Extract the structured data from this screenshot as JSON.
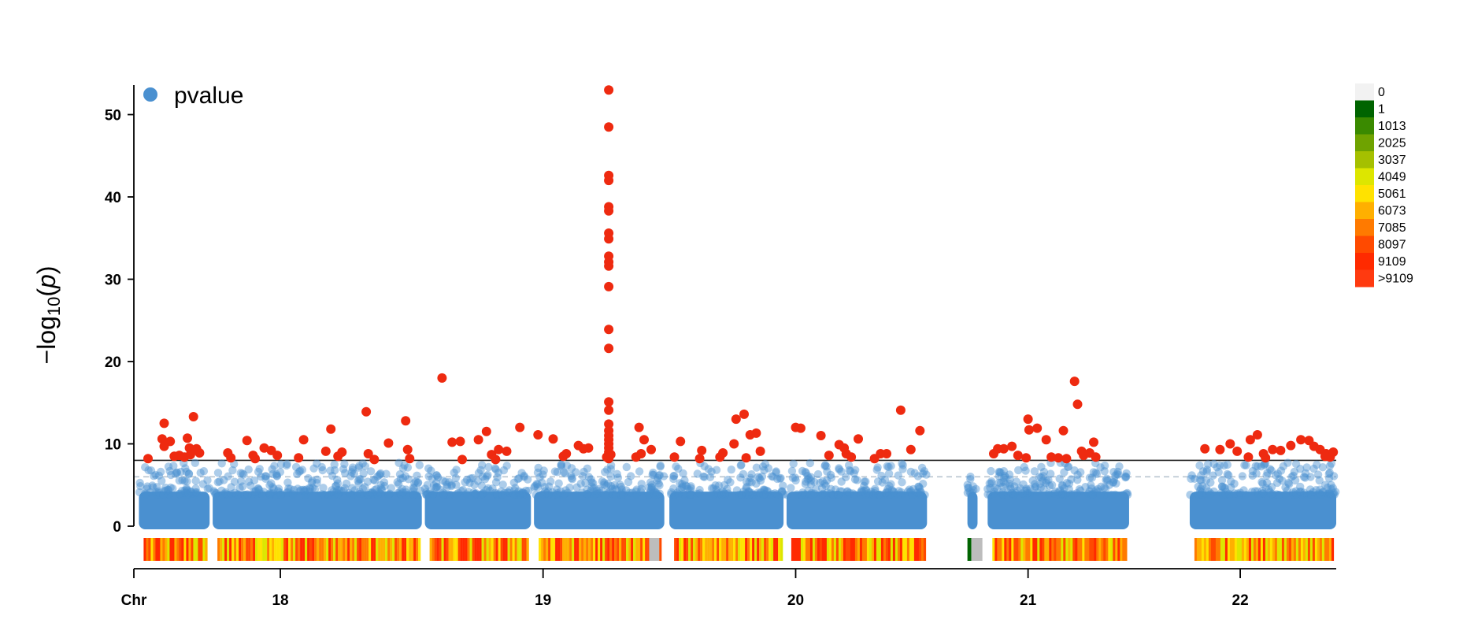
{
  "chart_data": {
    "type": "scatter",
    "subtype": "manhattan",
    "title": "",
    "xlabel": "Chr",
    "ylabel": "-log10(p)",
    "ylabel_parts": {
      "prefix": "−log",
      "sub": "10",
      "open": "(",
      "var": "p",
      "close": ")"
    },
    "ylim": [
      0,
      54
    ],
    "yticks": [
      0,
      10,
      20,
      30,
      40,
      50
    ],
    "xticks": [
      {
        "label": "Chr",
        "x": 0
      },
      {
        "label": "18",
        "x": 14.5
      },
      {
        "label": "19",
        "x": 40.5
      },
      {
        "label": "20",
        "x": 65.5
      },
      {
        "label": "21",
        "x": 88.5
      },
      {
        "label": "22",
        "x": 109.5
      }
    ],
    "xlim": [
      0,
      119
    ],
    "thresholds": [
      {
        "value": 8,
        "style": "solid",
        "color": "#222222"
      },
      {
        "value": 6,
        "style": "dashed",
        "color": "#b8c4cf"
      }
    ],
    "colors": {
      "point": "#4a90d0",
      "significant": "#ee2a10"
    },
    "legend": {
      "position": "top-left",
      "entries": [
        "pvalue"
      ]
    },
    "segments": [
      [
        0.5,
        7.5
      ],
      [
        7.8,
        28.5
      ],
      [
        28.8,
        39.3
      ],
      [
        39.6,
        52.5
      ],
      [
        53,
        64.3
      ],
      [
        64.6,
        78.5
      ],
      [
        82.5,
        83.5
      ],
      [
        84.5,
        98.5
      ],
      [
        104.5,
        119
      ]
    ],
    "significant_points": [
      [
        1.4,
        8.2
      ],
      [
        3.0,
        12.5
      ],
      [
        2.8,
        10.6
      ],
      [
        3.6,
        10.3
      ],
      [
        3.0,
        9.7
      ],
      [
        4.5,
        8.6
      ],
      [
        5.3,
        10.7
      ],
      [
        5.5,
        9.5
      ],
      [
        5.6,
        8.7
      ],
      [
        5.9,
        13.3
      ],
      [
        6.2,
        9.4
      ],
      [
        6.5,
        8.9
      ],
      [
        5.0,
        8.4
      ],
      [
        4.0,
        8.5
      ],
      [
        9.3,
        8.9
      ],
      [
        9.6,
        8.3
      ],
      [
        11.2,
        10.4
      ],
      [
        11.8,
        8.6
      ],
      [
        12.0,
        8.2
      ],
      [
        12.9,
        9.5
      ],
      [
        13.6,
        9.2
      ],
      [
        14.2,
        8.6
      ],
      [
        16.3,
        8.3
      ],
      [
        16.8,
        10.5
      ],
      [
        19.0,
        9.1
      ],
      [
        19.5,
        11.8
      ],
      [
        20.2,
        8.5
      ],
      [
        20.6,
        9.0
      ],
      [
        23.0,
        13.9
      ],
      [
        23.2,
        8.8
      ],
      [
        23.8,
        8.1
      ],
      [
        25.2,
        10.1
      ],
      [
        26.9,
        12.8
      ],
      [
        27.1,
        9.3
      ],
      [
        27.3,
        8.2
      ],
      [
        30.5,
        18.0
      ],
      [
        31.5,
        10.2
      ],
      [
        32.3,
        10.3
      ],
      [
        32.5,
        8.1
      ],
      [
        34.1,
        10.5
      ],
      [
        34.9,
        11.5
      ],
      [
        35.4,
        8.7
      ],
      [
        35.8,
        8.1
      ],
      [
        36.1,
        9.3
      ],
      [
        36.9,
        9.1
      ],
      [
        38.2,
        12.0
      ],
      [
        40.0,
        11.1
      ],
      [
        41.5,
        10.6
      ],
      [
        42.5,
        8.5
      ],
      [
        42.8,
        8.8
      ],
      [
        44.0,
        9.8
      ],
      [
        44.5,
        9.4
      ],
      [
        45.0,
        9.5
      ],
      [
        47.0,
        53.0
      ],
      [
        47.0,
        48.5
      ],
      [
        47.0,
        42.6
      ],
      [
        47.0,
        42.0
      ],
      [
        47.0,
        38.8
      ],
      [
        47.0,
        38.3
      ],
      [
        47.0,
        35.6
      ],
      [
        47.0,
        34.9
      ],
      [
        47.0,
        32.8
      ],
      [
        47.0,
        32.1
      ],
      [
        47.0,
        31.6
      ],
      [
        47.0,
        29.1
      ],
      [
        47.0,
        23.9
      ],
      [
        47.0,
        21.6
      ],
      [
        47.0,
        15.1
      ],
      [
        47.0,
        14.1
      ],
      [
        47.0,
        12.4
      ],
      [
        47.0,
        11.6
      ],
      [
        47.0,
        11.0
      ],
      [
        47.0,
        10.5
      ],
      [
        47.0,
        10.0
      ],
      [
        47.0,
        9.5
      ],
      [
        47.0,
        9.0
      ],
      [
        47.0,
        8.6
      ],
      [
        47.0,
        8.2
      ],
      [
        46.8,
        8.4
      ],
      [
        47.2,
        8.7
      ],
      [
        49.7,
        8.4
      ],
      [
        50.0,
        12.0
      ],
      [
        50.2,
        8.8
      ],
      [
        50.5,
        10.5
      ],
      [
        51.2,
        9.3
      ],
      [
        53.5,
        8.4
      ],
      [
        54.1,
        10.3
      ],
      [
        56.0,
        8.2
      ],
      [
        56.2,
        9.2
      ],
      [
        58.0,
        8.4
      ],
      [
        58.3,
        8.9
      ],
      [
        59.4,
        10.0
      ],
      [
        59.6,
        13.0
      ],
      [
        60.4,
        13.6
      ],
      [
        60.6,
        8.3
      ],
      [
        61.0,
        11.1
      ],
      [
        61.6,
        11.3
      ],
      [
        62.0,
        9.1
      ],
      [
        65.5,
        12.0
      ],
      [
        66.0,
        11.9
      ],
      [
        68.0,
        11.0
      ],
      [
        68.8,
        8.6
      ],
      [
        69.8,
        9.9
      ],
      [
        70.3,
        9.5
      ],
      [
        70.5,
        8.8
      ],
      [
        71.0,
        8.4
      ],
      [
        71.7,
        10.6
      ],
      [
        73.3,
        8.2
      ],
      [
        73.9,
        8.8
      ],
      [
        74.5,
        8.8
      ],
      [
        75.9,
        14.1
      ],
      [
        76.9,
        9.3
      ],
      [
        77.8,
        11.6
      ],
      [
        85.1,
        8.8
      ],
      [
        85.5,
        9.4
      ],
      [
        86.1,
        9.4
      ],
      [
        86.9,
        9.7
      ],
      [
        87.5,
        8.6
      ],
      [
        88.3,
        8.3
      ],
      [
        88.5,
        13.0
      ],
      [
        88.6,
        11.7
      ],
      [
        89.4,
        11.9
      ],
      [
        90.3,
        10.5
      ],
      [
        90.8,
        8.4
      ],
      [
        91.5,
        8.3
      ],
      [
        92.0,
        11.6
      ],
      [
        92.3,
        8.2
      ],
      [
        93.1,
        17.6
      ],
      [
        93.4,
        14.8
      ],
      [
        94.0,
        8.6
      ],
      [
        94.6,
        8.9
      ],
      [
        95.0,
        10.2
      ],
      [
        95.2,
        8.4
      ],
      [
        93.8,
        9.1
      ],
      [
        106.0,
        9.4
      ],
      [
        107.5,
        9.3
      ],
      [
        108.5,
        10.0
      ],
      [
        109.2,
        9.1
      ],
      [
        110.5,
        10.5
      ],
      [
        111.2,
        11.1
      ],
      [
        111.8,
        8.8
      ],
      [
        112.7,
        9.3
      ],
      [
        113.5,
        9.2
      ],
      [
        114.5,
        9.8
      ],
      [
        115.5,
        10.5
      ],
      [
        116.3,
        10.4
      ],
      [
        116.8,
        9.7
      ],
      [
        117.4,
        9.3
      ],
      [
        118.0,
        8.8
      ],
      [
        118.4,
        8.4
      ],
      [
        118.7,
        9.0
      ],
      [
        117.9,
        8.5
      ],
      [
        110.3,
        8.4
      ],
      [
        112.0,
        8.3
      ]
    ],
    "density": {
      "legend_labels": [
        "0",
        "1",
        "1013",
        "2025",
        "3037",
        "4049",
        "5061",
        "6073",
        "7085",
        "8097",
        "9109",
        ">9109"
      ],
      "legend_colors": [
        "#f2f2f2",
        "#006400",
        "#3a8a00",
        "#6fa300",
        "#a5c000",
        "#dde600",
        "#ffe200",
        "#ffaf00",
        "#ff7a00",
        "#ff4a00",
        "#ff2a00",
        "#ff3a10"
      ]
    }
  }
}
